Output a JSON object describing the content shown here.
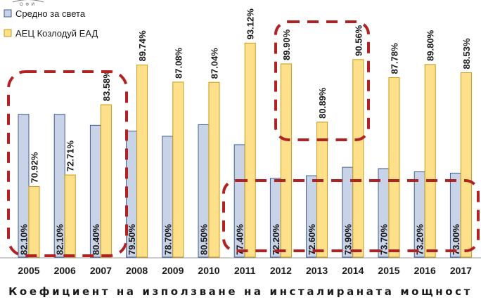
{
  "logo_fragment": "О Ф И",
  "legend": [
    {
      "label": "Средно за света",
      "color": "#c9d3e8",
      "stroke": "#3f5c96"
    },
    {
      "label": "АЕЦ Козлодуй ЕАД",
      "color": "#ffe08a",
      "stroke": "#c99a16"
    }
  ],
  "highlight_color": "#b22222",
  "chart_data": {
    "type": "bar",
    "title": "",
    "xlabel": "Коефициент на използване на инсталираната мощност",
    "ylabel": "",
    "ylim": [
      60,
      95
    ],
    "categories": [
      "2005",
      "2006",
      "2007",
      "2008",
      "2009",
      "2010",
      "2011",
      "2012",
      "2013",
      "2014",
      "2015",
      "2016",
      "2017"
    ],
    "series": [
      {
        "name": "Средно за света",
        "values": [
          82.1,
          82.1,
          80.4,
          79.5,
          78.7,
          80.5,
          77.4,
          72.2,
          72.6,
          73.9,
          73.7,
          73.2,
          73.0
        ],
        "labels": [
          "82.10%",
          "82.10%",
          "80.40%",
          "79.50%",
          "78.70%",
          "80.50%",
          "77.40%",
          "72.20%",
          "72.60%",
          "73.90%",
          "73.70%",
          "73.20%",
          "73.00%"
        ]
      },
      {
        "name": "АЕЦ Козлодуй ЕАД",
        "values": [
          70.92,
          72.71,
          83.58,
          89.74,
          87.08,
          87.04,
          93.12,
          89.9,
          80.89,
          90.56,
          87.78,
          89.8,
          88.53
        ],
        "labels": [
          "70.92%",
          "72.71%",
          "83.58%",
          "89.74%",
          "87.08%",
          "87.04%",
          "93.12%",
          "89.90%",
          "80.89%",
          "90.56%",
          "87.78%",
          "89.80%",
          "88.53%"
        ]
      }
    ],
    "grid": false,
    "legend_position": "top-left"
  }
}
